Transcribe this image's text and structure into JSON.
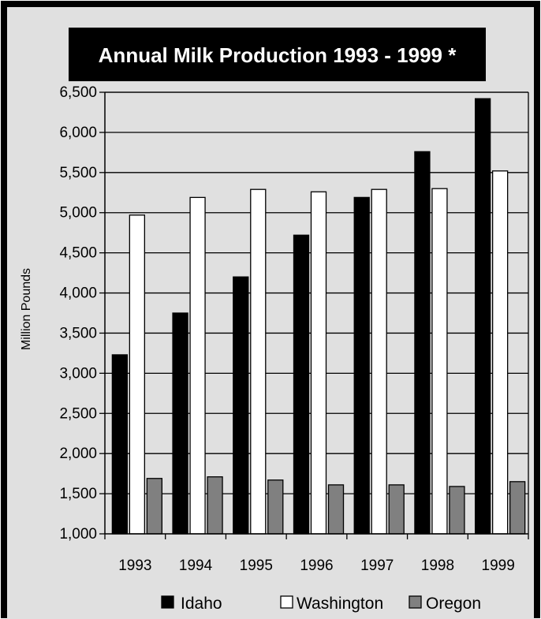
{
  "chart_data": {
    "type": "bar",
    "title": "Annual Milk Production 1993 - 1999 *",
    "xlabel": "",
    "ylabel": "Million Pounds",
    "ylim": [
      1000,
      6500
    ],
    "yticks": [
      "1,000",
      "1,500",
      "2,000",
      "2,500",
      "3,000",
      "3,500",
      "4,000",
      "4,500",
      "5,000",
      "5,500",
      "6,000",
      "6,500"
    ],
    "ytick_values": [
      1000,
      1500,
      2000,
      2500,
      3000,
      3500,
      4000,
      4500,
      5000,
      5500,
      6000,
      6500
    ],
    "categories": [
      "1993",
      "1994",
      "1995",
      "1996",
      "1997",
      "1998",
      "1999"
    ],
    "series": [
      {
        "name": "Idaho",
        "color": "#000000",
        "values": [
          3230,
          3750,
          4200,
          4720,
          5190,
          5760,
          6420
        ]
      },
      {
        "name": "Washington",
        "color": "#ffffff",
        "values": [
          4970,
          5190,
          5290,
          5260,
          5290,
          5300,
          5520
        ]
      },
      {
        "name": "Oregon",
        "color": "#808080",
        "values": [
          1690,
          1710,
          1670,
          1610,
          1610,
          1590,
          1650
        ]
      }
    ],
    "grid": true,
    "legend_position": "bottom",
    "colors": {
      "background": "#e0e0e0",
      "title_bg": "#000000",
      "title_fg": "#ffffff",
      "plot_bg": "#e0e0e0"
    }
  }
}
